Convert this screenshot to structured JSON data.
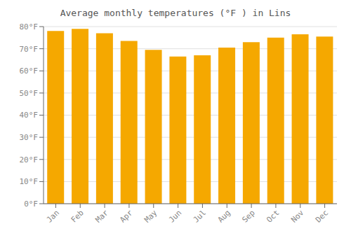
{
  "chart_data": {
    "type": "bar",
    "title": "Average monthly temperatures (°F ) in Lins",
    "categories": [
      "Jan",
      "Feb",
      "Mar",
      "Apr",
      "May",
      "Jun",
      "Jul",
      "Aug",
      "Sep",
      "Oct",
      "Nov",
      "Dec"
    ],
    "values": [
      78,
      79,
      77,
      73.5,
      69.5,
      66.5,
      67,
      70.5,
      73,
      75,
      76.5,
      75.5
    ],
    "color": "#F5A800",
    "ylim": [
      0,
      80
    ],
    "yticks": [
      {
        "value": 0,
        "label": "0°F"
      },
      {
        "value": 10,
        "label": "10°F"
      },
      {
        "value": 20,
        "label": "20°F"
      },
      {
        "value": 30,
        "label": "30°F"
      },
      {
        "value": 40,
        "label": "40°F"
      },
      {
        "value": 50,
        "label": "50°F"
      },
      {
        "value": 60,
        "label": "60°F"
      },
      {
        "value": 70,
        "label": "70°F"
      },
      {
        "value": 80,
        "label": "80°F"
      }
    ],
    "grid": true
  }
}
